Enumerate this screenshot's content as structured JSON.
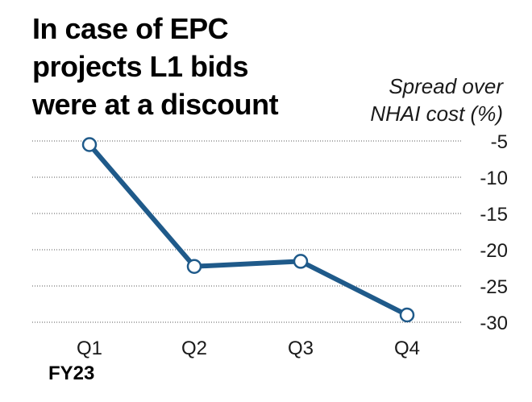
{
  "chart_data": {
    "type": "line",
    "title_lines": [
      "In case of EPC",
      "projects L1 bids",
      "were at a discount"
    ],
    "ylabel_lines": [
      "Spread over",
      "NHAI cost (%)"
    ],
    "x_group_label": "FY23",
    "categories": [
      "Q1",
      "Q2",
      "Q3",
      "Q4"
    ],
    "series": [
      {
        "values": [
          -5.5,
          -22.3,
          -21.6,
          -29.0
        ]
      }
    ],
    "yticks": [
      -5,
      -10,
      -15,
      -20,
      -25,
      -30
    ],
    "ylim": [
      -30,
      -5
    ],
    "grid": true,
    "y_axis_side": "right",
    "line_color": "#1f5a8a",
    "grid_color": "#555555"
  }
}
